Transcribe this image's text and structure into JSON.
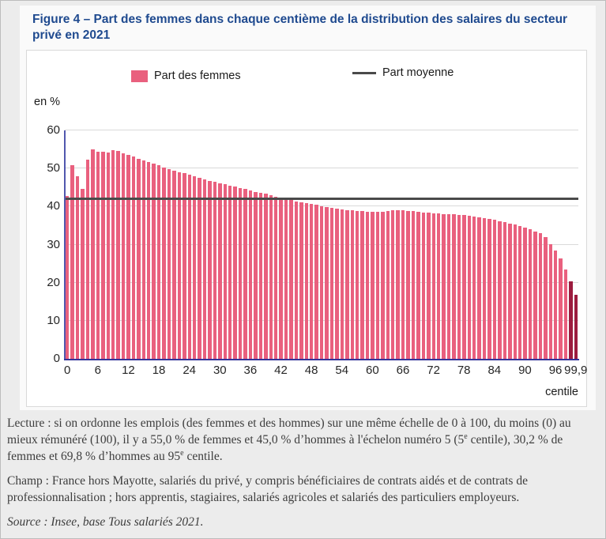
{
  "page": {
    "accent_color": "#1f4a8f",
    "background_color": "#ececec",
    "card_color": "#ffffff"
  },
  "notes": {
    "lecture_p1": "Lecture : si on ordonne les emplois (des femmes et des hommes) sur une même échelle de 0 à 100, du moins (0) au mieux rémunéré (100), il y a 55,0 % de femmes et 45,0 % d’hommes à l'échelon numéro 5 (5",
    "lecture_sup1": "e",
    "lecture_p2": " centile), 30,2 % de femmes et 69,8 % d’hommes au 95",
    "lecture_sup2": "e",
    "lecture_p3": " centile.",
    "champ": "Champ : France hors Mayotte, salariés du privé, y compris bénéficiaires de contrats aidés et de contrats de professionnalisation ; hors apprentis, stagiaires, salariés agricoles et salariés des particuliers employeurs.",
    "source": "Source : Insee, base Tous salariés 2021."
  },
  "chart_data": {
    "type": "bar",
    "title": "Figure 4 – Part des femmes dans chaque centième de la distribution des salaires du secteur privé en 2021",
    "ylabel": "en %",
    "xlabel": "centile",
    "ylim": [
      0,
      60
    ],
    "grid": true,
    "legend_position": "top",
    "series_label": "Part des femmes",
    "mean_line": {
      "label": "Part moyenne",
      "value": 41.7
    },
    "y_ticks": [
      0,
      10,
      20,
      30,
      40,
      50,
      60
    ],
    "x_ticks": [
      "0",
      "6",
      "12",
      "18",
      "24",
      "30",
      "36",
      "42",
      "48",
      "54",
      "60",
      "66",
      "72",
      "78",
      "84",
      "90",
      "96",
      "99,9"
    ],
    "colors": {
      "bar": "#e9607e",
      "bar_highlight": "#9c1c3f",
      "mean_line": "#4a4a4a",
      "y_axis": "#5157ae",
      "x_axis": "#34349b",
      "grid": "#d9d9d9"
    },
    "highlight_last_n": 2,
    "categories": [
      "0",
      "1",
      "2",
      "3",
      "4",
      "5",
      "6",
      "7",
      "8",
      "9",
      "10",
      "11",
      "12",
      "13",
      "14",
      "15",
      "16",
      "17",
      "18",
      "19",
      "20",
      "21",
      "22",
      "23",
      "24",
      "25",
      "26",
      "27",
      "28",
      "29",
      "30",
      "31",
      "32",
      "33",
      "34",
      "35",
      "36",
      "37",
      "38",
      "39",
      "40",
      "41",
      "42",
      "43",
      "44",
      "45",
      "46",
      "47",
      "48",
      "49",
      "50",
      "51",
      "52",
      "53",
      "54",
      "55",
      "56",
      "57",
      "58",
      "59",
      "60",
      "61",
      "62",
      "63",
      "64",
      "65",
      "66",
      "67",
      "68",
      "69",
      "70",
      "71",
      "72",
      "73",
      "74",
      "75",
      "76",
      "77",
      "78",
      "79",
      "80",
      "81",
      "82",
      "83",
      "84",
      "85",
      "86",
      "87",
      "88",
      "89",
      "90",
      "91",
      "92",
      "93",
      "94",
      "95",
      "96",
      "97",
      "98",
      "99",
      "99,9"
    ],
    "values": [
      42.8,
      50.8,
      48.0,
      44.6,
      52.3,
      55.0,
      54.4,
      54.3,
      54.1,
      54.8,
      54.6,
      53.9,
      53.6,
      53.1,
      52.6,
      52.1,
      51.7,
      51.2,
      50.8,
      50.3,
      49.9,
      49.5,
      49.1,
      48.7,
      48.3,
      47.9,
      47.5,
      47.1,
      46.8,
      46.5,
      46.1,
      45.8,
      45.5,
      45.2,
      44.9,
      44.6,
      44.3,
      43.9,
      43.6,
      43.3,
      42.9,
      42.6,
      42.3,
      42.0,
      41.7,
      41.4,
      41.1,
      40.9,
      40.6,
      40.4,
      40.1,
      39.9,
      39.7,
      39.5,
      39.3,
      39.1,
      39.0,
      38.9,
      38.8,
      38.7,
      38.7,
      38.6,
      38.6,
      38.8,
      39.0,
      39.1,
      39.0,
      38.9,
      38.8,
      38.6,
      38.5,
      38.4,
      38.3,
      38.2,
      38.1,
      38.0,
      37.9,
      37.8,
      37.7,
      37.5,
      37.4,
      37.2,
      37.0,
      36.8,
      36.5,
      36.2,
      35.9,
      35.5,
      35.2,
      34.8,
      34.4,
      34.0,
      33.5,
      33.0,
      31.9,
      30.2,
      28.5,
      26.4,
      23.5,
      20.4,
      16.9
    ]
  }
}
